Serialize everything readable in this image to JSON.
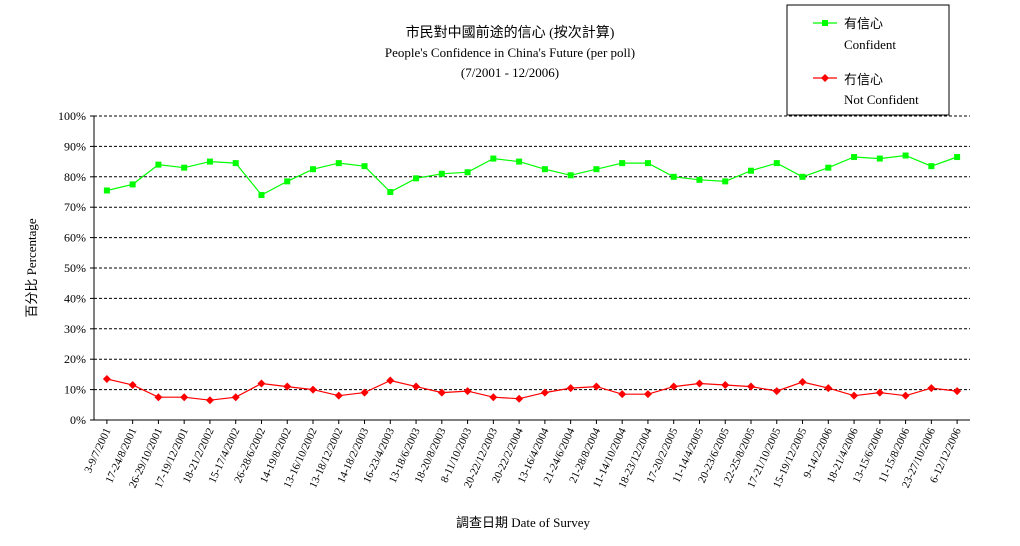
{
  "chart_data": {
    "type": "line",
    "title_lines": [
      "市民對中國前途的信心 (按次計算)",
      "People's Confidence in China's Future (per poll)",
      "(7/2001 - 12/2006)"
    ],
    "ylabel": "百分比 Percentage",
    "xlabel": "調查日期 Date of Survey",
    "ylim": [
      0,
      100
    ],
    "yticks": [
      "0%",
      "10%",
      "20%",
      "30%",
      "40%",
      "50%",
      "60%",
      "70%",
      "80%",
      "90%",
      "100%"
    ],
    "grid": true,
    "legend_placement": "top-right",
    "categories": [
      "3-9/7/2001",
      "17-24/8/2001",
      "26-29/10/2001",
      "17-19/12/2001",
      "18-21/2/2002",
      "15-17/4/2002",
      "26-28/6/2002",
      "14-19/8/2002",
      "13-16/10/2002",
      "13-18/12/2002",
      "14-18/2/2003",
      "16-23/4/2003",
      "13-18/6/2003",
      "18-20/8/2003",
      "8-11/10/2003",
      "20-22/12/2003",
      "20-22/2/2004",
      "13-16/4/2004",
      "21-24/6/2004",
      "21-28/8/2004",
      "11-14/10/2004",
      "18-23/12/2004",
      "17-20/2/2005",
      "11-14/4/2005",
      "20-23/6/2005",
      "22-25/8/2005",
      "17-21/10/2005",
      "15-19/12/2005",
      "9-14/2/2006",
      "18-21/4/2006",
      "13-15/6/2006",
      "11-15/8/2006",
      "23-27/10/2006",
      "6-12/12/2006"
    ],
    "series": [
      {
        "name": "有信心",
        "name_en": "Confident",
        "color": "#00ff00",
        "marker": "square",
        "values": [
          75.5,
          77.5,
          84,
          83,
          85,
          84.5,
          74,
          78.5,
          82.5,
          84.5,
          83.5,
          75,
          79.5,
          81,
          81.5,
          86,
          85,
          82.5,
          80.5,
          82.5,
          84.5,
          84.5,
          80,
          79,
          78.5,
          82,
          84.5,
          80,
          83,
          86.5,
          86,
          87,
          83.5,
          86.5
        ]
      },
      {
        "name": "冇信心",
        "name_en": "Not Confident",
        "color": "#ff0000",
        "marker": "diamond",
        "values": [
          13.5,
          11.5,
          7.5,
          7.5,
          6.5,
          7.5,
          12,
          11,
          10,
          8,
          9,
          13,
          11,
          9,
          9.5,
          7.5,
          7,
          9,
          10.5,
          11,
          8.5,
          8.5,
          11,
          12,
          11.5,
          11,
          9.5,
          12.5,
          10.5,
          8,
          9,
          8,
          10.5,
          9.5
        ]
      }
    ]
  }
}
